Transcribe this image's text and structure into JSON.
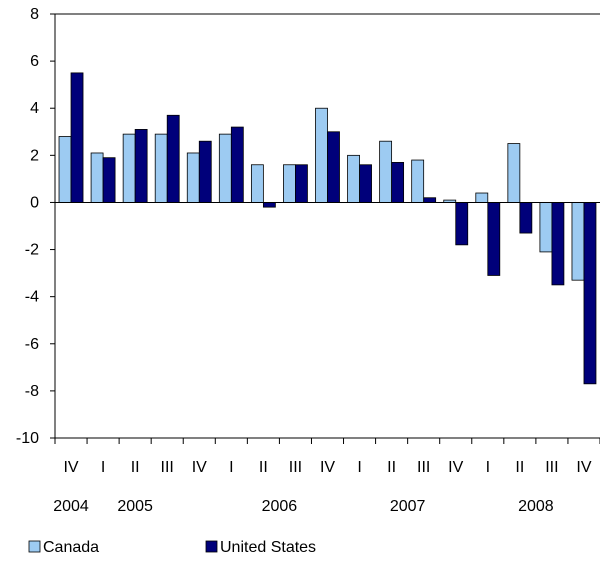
{
  "chart_data": {
    "type": "bar",
    "title": "",
    "xlabel": "",
    "ylabel": "",
    "ylim": [
      -10,
      8
    ],
    "yticks": [
      8,
      6,
      4,
      2,
      0,
      -2,
      -4,
      -6,
      -8,
      -10
    ],
    "ytick_labels": [
      "8",
      "6",
      "4",
      "2",
      "0",
      "-2",
      "-4",
      "-6",
      "-8",
      "-10"
    ],
    "categories": [
      "IV",
      "I",
      "II",
      "III",
      "IV",
      "I",
      "II",
      "III",
      "IV",
      "I",
      "II",
      "III",
      "IV",
      "I",
      "II",
      "III",
      "IV"
    ],
    "years": [
      {
        "label": "2004",
        "index": 0
      },
      {
        "label": "2005",
        "index": 2
      },
      {
        "label": "2006",
        "index": 6.5
      },
      {
        "label": "2007",
        "index": 10.5
      },
      {
        "label": "2008",
        "index": 14.5
      }
    ],
    "series": [
      {
        "name": "Canada",
        "color": "#9dcbf2",
        "values": [
          2.8,
          2.1,
          2.9,
          2.9,
          2.1,
          2.9,
          1.6,
          1.6,
          4.0,
          2.0,
          2.6,
          1.8,
          0.1,
          0.4,
          2.5,
          -2.1,
          -3.3
        ]
      },
      {
        "name": "United States",
        "color": "#00007a",
        "values": [
          5.5,
          1.9,
          3.1,
          3.7,
          2.6,
          3.2,
          -0.2,
          1.6,
          3.0,
          1.6,
          1.7,
          0.2,
          -1.8,
          -3.1,
          -1.3,
          -3.5,
          -7.7
        ]
      }
    ],
    "grid": false,
    "legend_position": "bottom-left"
  }
}
